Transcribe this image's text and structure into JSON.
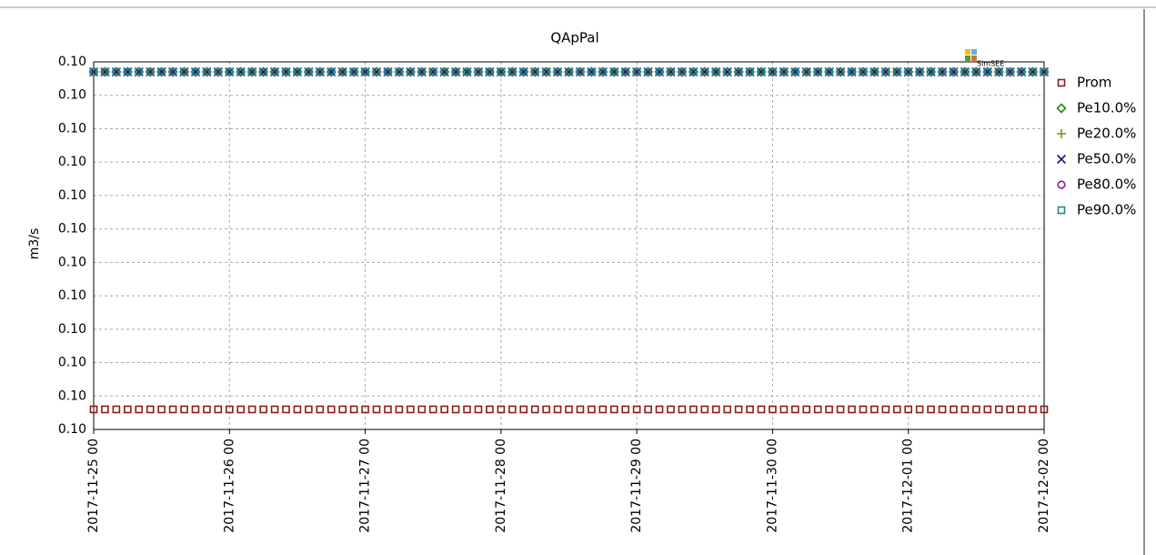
{
  "chart_data": {
    "type": "scatter",
    "title": "QApPal",
    "ylabel": "m3/s",
    "watermark": "SimSEE",
    "xlim": [
      "2017-11-25 00",
      "2017-12-02 00"
    ],
    "xticks": [
      "2017-11-25 00",
      "2017-11-26 00",
      "2017-11-27 00",
      "2017-11-28 00",
      "2017-11-29 00",
      "2017-11-30 00",
      "2017-12-01 00",
      "2017-12-02 00"
    ],
    "ylim": [
      0.0995,
      0.1006
    ],
    "yticks": [
      {
        "value": 0.0995,
        "label": "0.10"
      },
      {
        "value": 0.0996,
        "label": "0.10"
      },
      {
        "value": 0.0997,
        "label": "0.10"
      },
      {
        "value": 0.0998,
        "label": "0.10"
      },
      {
        "value": 0.0999,
        "label": "0.10"
      },
      {
        "value": 0.1,
        "label": "0.10"
      },
      {
        "value": 0.1001,
        "label": "0.10"
      },
      {
        "value": 0.1002,
        "label": "0.10"
      },
      {
        "value": 0.1003,
        "label": "0.10"
      },
      {
        "value": 0.1004,
        "label": "0.10"
      },
      {
        "value": 0.1005,
        "label": "0.10"
      },
      {
        "value": 0.1006,
        "label": "0.10"
      }
    ],
    "grid": true,
    "legend": "right",
    "x": [
      "2017-11-25 00",
      "2017-11-25 02",
      "2017-11-25 04",
      "2017-11-25 06",
      "2017-11-25 08",
      "2017-11-25 10",
      "2017-11-25 12",
      "2017-11-25 14",
      "2017-11-25 16",
      "2017-11-25 18",
      "2017-11-25 20",
      "2017-11-25 22",
      "2017-11-26 00",
      "2017-11-26 02",
      "2017-11-26 04",
      "2017-11-26 06",
      "2017-11-26 08",
      "2017-11-26 10",
      "2017-11-26 12",
      "2017-11-26 14",
      "2017-11-26 16",
      "2017-11-26 18",
      "2017-11-26 20",
      "2017-11-26 22",
      "2017-11-27 00",
      "2017-11-27 02",
      "2017-11-27 04",
      "2017-11-27 06",
      "2017-11-27 08",
      "2017-11-27 10",
      "2017-11-27 12",
      "2017-11-27 14",
      "2017-11-27 16",
      "2017-11-27 18",
      "2017-11-27 20",
      "2017-11-27 22",
      "2017-11-28 00",
      "2017-11-28 02",
      "2017-11-28 04",
      "2017-11-28 06",
      "2017-11-28 08",
      "2017-11-28 10",
      "2017-11-28 12",
      "2017-11-28 14",
      "2017-11-28 16",
      "2017-11-28 18",
      "2017-11-28 20",
      "2017-11-28 22",
      "2017-11-29 00",
      "2017-11-29 02",
      "2017-11-29 04",
      "2017-11-29 06",
      "2017-11-29 08",
      "2017-11-29 10",
      "2017-11-29 12",
      "2017-11-29 14",
      "2017-11-29 16",
      "2017-11-29 18",
      "2017-11-29 20",
      "2017-11-29 22",
      "2017-11-30 00",
      "2017-11-30 02",
      "2017-11-30 04",
      "2017-11-30 06",
      "2017-11-30 08",
      "2017-11-30 10",
      "2017-11-30 12",
      "2017-11-30 14",
      "2017-11-30 16",
      "2017-11-30 18",
      "2017-11-30 20",
      "2017-11-30 22",
      "2017-12-01 00",
      "2017-12-01 02",
      "2017-12-01 04",
      "2017-12-01 06",
      "2017-12-01 08",
      "2017-12-01 10",
      "2017-12-01 12",
      "2017-12-01 14",
      "2017-12-01 16",
      "2017-12-01 18",
      "2017-12-01 20",
      "2017-12-01 22",
      "2017-12-02 00"
    ],
    "series": [
      {
        "name": "Prom",
        "color": "#8b1c1c",
        "marker": "square",
        "values": [
          0.09956,
          0.09956,
          0.09956,
          0.09956,
          0.09956,
          0.09956,
          0.09956,
          0.09956,
          0.09956,
          0.09956,
          0.09956,
          0.09956,
          0.09956,
          0.09956,
          0.09956,
          0.09956,
          0.09956,
          0.09956,
          0.09956,
          0.09956,
          0.09956,
          0.09956,
          0.09956,
          0.09956,
          0.09956,
          0.09956,
          0.09956,
          0.09956,
          0.09956,
          0.09956,
          0.09956,
          0.09956,
          0.09956,
          0.09956,
          0.09956,
          0.09956,
          0.09956,
          0.09956,
          0.09956,
          0.09956,
          0.09956,
          0.09956,
          0.09956,
          0.09956,
          0.09956,
          0.09956,
          0.09956,
          0.09956,
          0.09956,
          0.09956,
          0.09956,
          0.09956,
          0.09956,
          0.09956,
          0.09956,
          0.09956,
          0.09956,
          0.09956,
          0.09956,
          0.09956,
          0.09956,
          0.09956,
          0.09956,
          0.09956,
          0.09956,
          0.09956,
          0.09956,
          0.09956,
          0.09956,
          0.09956,
          0.09956,
          0.09956,
          0.09956,
          0.09956,
          0.09956,
          0.09956,
          0.09956,
          0.09956,
          0.09956,
          0.09956,
          0.09956,
          0.09956,
          0.09956,
          0.09956,
          0.09956
        ]
      },
      {
        "name": "Pe10.0%",
        "color": "#1e8a1e",
        "marker": "diamond",
        "values": [
          0.10057,
          0.10057,
          0.10057,
          0.10057,
          0.10057,
          0.10057,
          0.10057,
          0.10057,
          0.10057,
          0.10057,
          0.10057,
          0.10057,
          0.10057,
          0.10057,
          0.10057,
          0.10057,
          0.10057,
          0.10057,
          0.10057,
          0.10057,
          0.10057,
          0.10057,
          0.10057,
          0.10057,
          0.10057,
          0.10057,
          0.10057,
          0.10057,
          0.10057,
          0.10057,
          0.10057,
          0.10057,
          0.10057,
          0.10057,
          0.10057,
          0.10057,
          0.10057,
          0.10057,
          0.10057,
          0.10057,
          0.10057,
          0.10057,
          0.10057,
          0.10057,
          0.10057,
          0.10057,
          0.10057,
          0.10057,
          0.10057,
          0.10057,
          0.10057,
          0.10057,
          0.10057,
          0.10057,
          0.10057,
          0.10057,
          0.10057,
          0.10057,
          0.10057,
          0.10057,
          0.10057,
          0.10057,
          0.10057,
          0.10057,
          0.10057,
          0.10057,
          0.10057,
          0.10057,
          0.10057,
          0.10057,
          0.10057,
          0.10057,
          0.10057,
          0.10057,
          0.10057,
          0.10057,
          0.10057,
          0.10057,
          0.10057,
          0.10057,
          0.10057,
          0.10057,
          0.10057,
          0.10057,
          0.10057
        ]
      },
      {
        "name": "Pe20.0%",
        "color": "#8a8a10",
        "marker": "plus",
        "values": [
          0.10057,
          0.10057,
          0.10057,
          0.10057,
          0.10057,
          0.10057,
          0.10057,
          0.10057,
          0.10057,
          0.10057,
          0.10057,
          0.10057,
          0.10057,
          0.10057,
          0.10057,
          0.10057,
          0.10057,
          0.10057,
          0.10057,
          0.10057,
          0.10057,
          0.10057,
          0.10057,
          0.10057,
          0.10057,
          0.10057,
          0.10057,
          0.10057,
          0.10057,
          0.10057,
          0.10057,
          0.10057,
          0.10057,
          0.10057,
          0.10057,
          0.10057,
          0.10057,
          0.10057,
          0.10057,
          0.10057,
          0.10057,
          0.10057,
          0.10057,
          0.10057,
          0.10057,
          0.10057,
          0.10057,
          0.10057,
          0.10057,
          0.10057,
          0.10057,
          0.10057,
          0.10057,
          0.10057,
          0.10057,
          0.10057,
          0.10057,
          0.10057,
          0.10057,
          0.10057,
          0.10057,
          0.10057,
          0.10057,
          0.10057,
          0.10057,
          0.10057,
          0.10057,
          0.10057,
          0.10057,
          0.10057,
          0.10057,
          0.10057,
          0.10057,
          0.10057,
          0.10057,
          0.10057,
          0.10057,
          0.10057,
          0.10057,
          0.10057,
          0.10057,
          0.10057,
          0.10057,
          0.10057,
          0.10057
        ]
      },
      {
        "name": "Pe50.0%",
        "color": "#1c1c7a",
        "marker": "cross",
        "values": [
          0.10057,
          0.10057,
          0.10057,
          0.10057,
          0.10057,
          0.10057,
          0.10057,
          0.10057,
          0.10057,
          0.10057,
          0.10057,
          0.10057,
          0.10057,
          0.10057,
          0.10057,
          0.10057,
          0.10057,
          0.10057,
          0.10057,
          0.10057,
          0.10057,
          0.10057,
          0.10057,
          0.10057,
          0.10057,
          0.10057,
          0.10057,
          0.10057,
          0.10057,
          0.10057,
          0.10057,
          0.10057,
          0.10057,
          0.10057,
          0.10057,
          0.10057,
          0.10057,
          0.10057,
          0.10057,
          0.10057,
          0.10057,
          0.10057,
          0.10057,
          0.10057,
          0.10057,
          0.10057,
          0.10057,
          0.10057,
          0.10057,
          0.10057,
          0.10057,
          0.10057,
          0.10057,
          0.10057,
          0.10057,
          0.10057,
          0.10057,
          0.10057,
          0.10057,
          0.10057,
          0.10057,
          0.10057,
          0.10057,
          0.10057,
          0.10057,
          0.10057,
          0.10057,
          0.10057,
          0.10057,
          0.10057,
          0.10057,
          0.10057,
          0.10057,
          0.10057,
          0.10057,
          0.10057,
          0.10057,
          0.10057,
          0.10057,
          0.10057,
          0.10057,
          0.10057,
          0.10057,
          0.10057,
          0.10057
        ]
      },
      {
        "name": "Pe80.0%",
        "color": "#8a1c8a",
        "marker": "circle",
        "values": [
          0.10057,
          0.10057,
          0.10057,
          0.10057,
          0.10057,
          0.10057,
          0.10057,
          0.10057,
          0.10057,
          0.10057,
          0.10057,
          0.10057,
          0.10057,
          0.10057,
          0.10057,
          0.10057,
          0.10057,
          0.10057,
          0.10057,
          0.10057,
          0.10057,
          0.10057,
          0.10057,
          0.10057,
          0.10057,
          0.10057,
          0.10057,
          0.10057,
          0.10057,
          0.10057,
          0.10057,
          0.10057,
          0.10057,
          0.10057,
          0.10057,
          0.10057,
          0.10057,
          0.10057,
          0.10057,
          0.10057,
          0.10057,
          0.10057,
          0.10057,
          0.10057,
          0.10057,
          0.10057,
          0.10057,
          0.10057,
          0.10057,
          0.10057,
          0.10057,
          0.10057,
          0.10057,
          0.10057,
          0.10057,
          0.10057,
          0.10057,
          0.10057,
          0.10057,
          0.10057,
          0.10057,
          0.10057,
          0.10057,
          0.10057,
          0.10057,
          0.10057,
          0.10057,
          0.10057,
          0.10057,
          0.10057,
          0.10057,
          0.10057,
          0.10057,
          0.10057,
          0.10057,
          0.10057,
          0.10057,
          0.10057,
          0.10057,
          0.10057,
          0.10057,
          0.10057,
          0.10057,
          0.10057,
          0.10057
        ]
      },
      {
        "name": "Pe90.0%",
        "color": "#1c8a8a",
        "marker": "square",
        "values": [
          0.10057,
          0.10057,
          0.10057,
          0.10057,
          0.10057,
          0.10057,
          0.10057,
          0.10057,
          0.10057,
          0.10057,
          0.10057,
          0.10057,
          0.10057,
          0.10057,
          0.10057,
          0.10057,
          0.10057,
          0.10057,
          0.10057,
          0.10057,
          0.10057,
          0.10057,
          0.10057,
          0.10057,
          0.10057,
          0.10057,
          0.10057,
          0.10057,
          0.10057,
          0.10057,
          0.10057,
          0.10057,
          0.10057,
          0.10057,
          0.10057,
          0.10057,
          0.10057,
          0.10057,
          0.10057,
          0.10057,
          0.10057,
          0.10057,
          0.10057,
          0.10057,
          0.10057,
          0.10057,
          0.10057,
          0.10057,
          0.10057,
          0.10057,
          0.10057,
          0.10057,
          0.10057,
          0.10057,
          0.10057,
          0.10057,
          0.10057,
          0.10057,
          0.10057,
          0.10057,
          0.10057,
          0.10057,
          0.10057,
          0.10057,
          0.10057,
          0.10057,
          0.10057,
          0.10057,
          0.10057,
          0.10057,
          0.10057,
          0.10057,
          0.10057,
          0.10057,
          0.10057,
          0.10057,
          0.10057,
          0.10057,
          0.10057,
          0.10057,
          0.10057,
          0.10057,
          0.10057,
          0.10057,
          0.10057
        ]
      }
    ]
  }
}
